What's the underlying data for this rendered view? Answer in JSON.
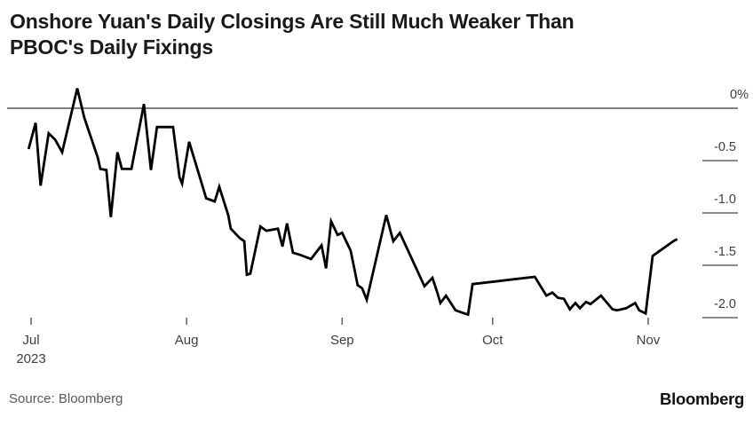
{
  "header": {
    "title_line1": "Onshore Yuan's Daily Closings Are Still Much Weaker Than",
    "title_line2": "PBOC's Daily Fixings"
  },
  "footer": {
    "source": "Source: Bloomberg",
    "brand": "Bloomberg"
  },
  "colors": {
    "title_text": "#1a1a1a",
    "axis_text": "#3d3d3d",
    "tick": "#8a8a8a",
    "x_tick": "#666666",
    "zero_line": "#7f7f7f",
    "line": "#000000",
    "source_text": "#585858"
  },
  "chart_data": {
    "type": "line",
    "title": "Onshore Yuan's Daily Closings Are Still Much Weaker Than PBOC's Daily Fixings",
    "xlabel": "",
    "ylabel": "%",
    "grid": "zero-line-only",
    "legend": "none",
    "x_axis": {
      "unit": "days since Jul 1, 2023",
      "tick_labels": [
        "Jul",
        "Aug",
        "Sep",
        "Oct",
        "Nov"
      ],
      "tick_days": [
        0,
        31,
        62,
        92,
        123
      ],
      "year_label": "2023",
      "xlim_days": [
        -4.8,
        140.9
      ]
    },
    "y_axis": {
      "unit": "%",
      "tick_labels": [
        "0%",
        "-0.5",
        "-1.0",
        "-1.5",
        "-2.0"
      ],
      "tick_values": [
        0,
        -0.5,
        -1.0,
        -1.5,
        -2.0
      ],
      "ylim": [
        -2.1,
        0.3
      ],
      "zero_line": true,
      "labels_side": "right"
    },
    "points": [
      [
        -0.5,
        -0.39
      ],
      [
        0.9,
        -0.14
      ],
      [
        1.9,
        -0.74
      ],
      [
        3.5,
        -0.24
      ],
      [
        4.8,
        -0.3
      ],
      [
        6.2,
        -0.42
      ],
      [
        9.2,
        0.19
      ],
      [
        10.6,
        -0.09
      ],
      [
        13.3,
        -0.47
      ],
      [
        13.8,
        -0.58
      ],
      [
        15.0,
        -0.59
      ],
      [
        15.9,
        -1.04
      ],
      [
        17.2,
        -0.42
      ],
      [
        18.1,
        -0.58
      ],
      [
        20.0,
        -0.58
      ],
      [
        22.5,
        0.04
      ],
      [
        23.9,
        -0.59
      ],
      [
        25.1,
        -0.18
      ],
      [
        28.3,
        -0.18
      ],
      [
        29.6,
        -0.66
      ],
      [
        30.1,
        -0.72
      ],
      [
        31.5,
        -0.32
      ],
      [
        34.9,
        -0.86
      ],
      [
        36.6,
        -0.89
      ],
      [
        37.5,
        -0.75
      ],
      [
        39.3,
        -1.02
      ],
      [
        39.8,
        -1.15
      ],
      [
        41.6,
        -1.24
      ],
      [
        42.5,
        -1.27
      ],
      [
        43.0,
        -1.59
      ],
      [
        43.7,
        -1.58
      ],
      [
        45.7,
        -1.13
      ],
      [
        46.9,
        -1.17
      ],
      [
        49.2,
        -1.15
      ],
      [
        50.1,
        -1.32
      ],
      [
        51.0,
        -1.1
      ],
      [
        52.2,
        -1.38
      ],
      [
        53.6,
        -1.4
      ],
      [
        55.8,
        -1.44
      ],
      [
        57.9,
        -1.31
      ],
      [
        58.8,
        -1.53
      ],
      [
        59.8,
        -1.08
      ],
      [
        61.1,
        -1.21
      ],
      [
        62.0,
        -1.19
      ],
      [
        63.7,
        -1.36
      ],
      [
        65.1,
        -1.69
      ],
      [
        66.0,
        -1.72
      ],
      [
        66.9,
        -1.83
      ],
      [
        70.8,
        -1.02
      ],
      [
        72.2,
        -1.27
      ],
      [
        73.5,
        -1.19
      ],
      [
        78.4,
        -1.7
      ],
      [
        80.0,
        -1.62
      ],
      [
        80.9,
        -1.75
      ],
      [
        81.6,
        -1.86
      ],
      [
        82.7,
        -1.79
      ],
      [
        84.6,
        -1.93
      ],
      [
        86.4,
        -1.96
      ],
      [
        87.1,
        -1.97
      ],
      [
        88.0,
        -1.68
      ],
      [
        100.4,
        -1.61
      ],
      [
        102.7,
        -1.79
      ],
      [
        103.9,
        -1.76
      ],
      [
        105.0,
        -1.81
      ],
      [
        106.2,
        -1.82
      ],
      [
        107.4,
        -1.92
      ],
      [
        108.5,
        -1.86
      ],
      [
        109.4,
        -1.91
      ],
      [
        110.6,
        -1.85
      ],
      [
        111.5,
        -1.87
      ],
      [
        113.6,
        -1.79
      ],
      [
        115.9,
        -1.92
      ],
      [
        116.8,
        -1.93
      ],
      [
        118.6,
        -1.91
      ],
      [
        120.4,
        -1.86
      ],
      [
        121.2,
        -1.93
      ],
      [
        122.5,
        -1.96
      ],
      [
        123.9,
        -1.41
      ],
      [
        124.8,
        -1.38
      ],
      [
        128.0,
        -1.27
      ],
      [
        128.8,
        -1.25
      ]
    ]
  }
}
